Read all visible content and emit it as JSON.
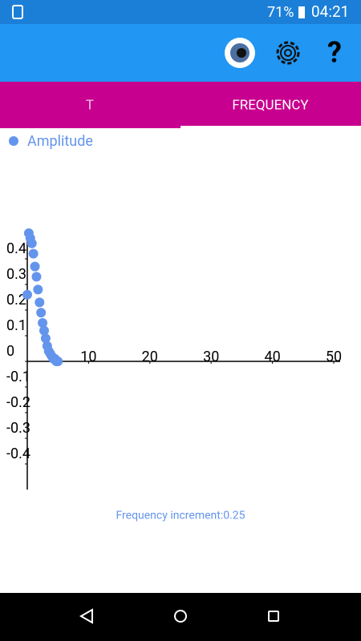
{
  "status_bar": {
    "battery": "71%",
    "time": "04:21"
  },
  "toolbar": {
    "help": "?"
  },
  "tabs": [
    "T",
    "FREQUENCY"
  ],
  "chart_data": {
    "type": "scatter",
    "series": [
      {
        "name": "Amplitude",
        "color": "#6495ed",
        "x": [
          0,
          0.25,
          0.5,
          0.75,
          1,
          1.25,
          1.5,
          1.75,
          2,
          2.25,
          2.5,
          2.75,
          3,
          3.25,
          3.5,
          3.75,
          4,
          4.25,
          4.5,
          4.75,
          5
        ],
        "values": [
          0.26,
          0.5,
          0.48,
          0.46,
          0.42,
          0.37,
          0.33,
          0.28,
          0.23,
          0.19,
          0.15,
          0.12,
          0.09,
          0.06,
          0.04,
          0.03,
          0.02,
          0.01,
          0.01,
          0,
          0
        ]
      }
    ],
    "xlim": [
      0,
      50
    ],
    "xticks": [
      10,
      20,
      30,
      40,
      50
    ],
    "ylim": [
      -0.5,
      0.5
    ],
    "yticks": [
      -0.4,
      -0.3,
      -0.2,
      -0.1,
      0,
      0.1,
      0.2,
      0.3,
      0.4
    ]
  },
  "footer": "Frequency increment:0.25"
}
